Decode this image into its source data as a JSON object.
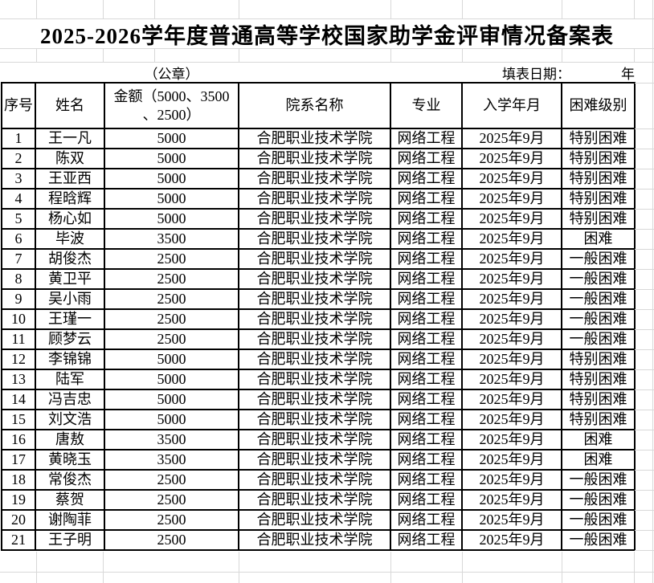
{
  "title": "2025-2026学年度普通高等学校国家助学金评审情况备案表",
  "subheader": {
    "seal_label": "（公章）",
    "fill_date_label": "填表日期：",
    "fill_date_year_suffix": "年"
  },
  "table": {
    "headers": [
      "序号",
      "姓名",
      "金额（5000、3500\n、2500）",
      "院系名称",
      "专业",
      "入学年月",
      "困难级别"
    ],
    "rows": [
      [
        "1",
        "王一凡",
        "5000",
        "合肥职业技术学院",
        "网络工程",
        "2025年9月",
        "特别困难"
      ],
      [
        "2",
        "陈双",
        "5000",
        "合肥职业技术学院",
        "网络工程",
        "2025年9月",
        "特别困难"
      ],
      [
        "3",
        "王亚西",
        "5000",
        "合肥职业技术学院",
        "网络工程",
        "2025年9月",
        "特别困难"
      ],
      [
        "4",
        "程晗辉",
        "5000",
        "合肥职业技术学院",
        "网络工程",
        "2025年9月",
        "特别困难"
      ],
      [
        "5",
        "杨心如",
        "5000",
        "合肥职业技术学院",
        "网络工程",
        "2025年9月",
        "特别困难"
      ],
      [
        "6",
        "毕波",
        "3500",
        "合肥职业技术学院",
        "网络工程",
        "2025年9月",
        "困难"
      ],
      [
        "7",
        "胡俊杰",
        "2500",
        "合肥职业技术学院",
        "网络工程",
        "2025年9月",
        "一般困难"
      ],
      [
        "8",
        "黄卫平",
        "2500",
        "合肥职业技术学院",
        "网络工程",
        "2025年9月",
        "一般困难"
      ],
      [
        "9",
        "吴小雨",
        "2500",
        "合肥职业技术学院",
        "网络工程",
        "2025年9月",
        "一般困难"
      ],
      [
        "10",
        "王瑾一",
        "2500",
        "合肥职业技术学院",
        "网络工程",
        "2025年9月",
        "一般困难"
      ],
      [
        "11",
        "顾梦云",
        "2500",
        "合肥职业技术学院",
        "网络工程",
        "2025年9月",
        "一般困难"
      ],
      [
        "12",
        "李锦锦",
        "5000",
        "合肥职业技术学院",
        "网络工程",
        "2025年9月",
        "特别困难"
      ],
      [
        "13",
        "陆军",
        "5000",
        "合肥职业技术学院",
        "网络工程",
        "2025年9月",
        "特别困难"
      ],
      [
        "14",
        "冯吉忠",
        "5000",
        "合肥职业技术学院",
        "网络工程",
        "2025年9月",
        "特别困难"
      ],
      [
        "15",
        "刘文浩",
        "5000",
        "合肥职业技术学院",
        "网络工程",
        "2025年9月",
        "特别困难"
      ],
      [
        "16",
        "唐敖",
        "3500",
        "合肥职业技术学院",
        "网络工程",
        "2025年9月",
        "困难"
      ],
      [
        "17",
        "黄晓玉",
        "3500",
        "合肥职业技术学院",
        "网络工程",
        "2025年9月",
        "困难"
      ],
      [
        "18",
        "常俊杰",
        "2500",
        "合肥职业技术学院",
        "网络工程",
        "2025年9月",
        "一般困难"
      ],
      [
        "19",
        "蔡贺",
        "2500",
        "合肥职业技术学院",
        "网络工程",
        "2025年9月",
        "一般困难"
      ],
      [
        "20",
        "谢陶菲",
        "2500",
        "合肥职业技术学院",
        "网络工程",
        "2025年9月",
        "一般困难"
      ],
      [
        "21",
        "王子明",
        "2500",
        "合肥职业技术学院",
        "网络工程",
        "2025年9月",
        "一般困难"
      ]
    ]
  },
  "colors": {
    "background": "#ffffff",
    "text": "#000000",
    "table_border": "#000000",
    "gridline": "#d8d8d8"
  }
}
